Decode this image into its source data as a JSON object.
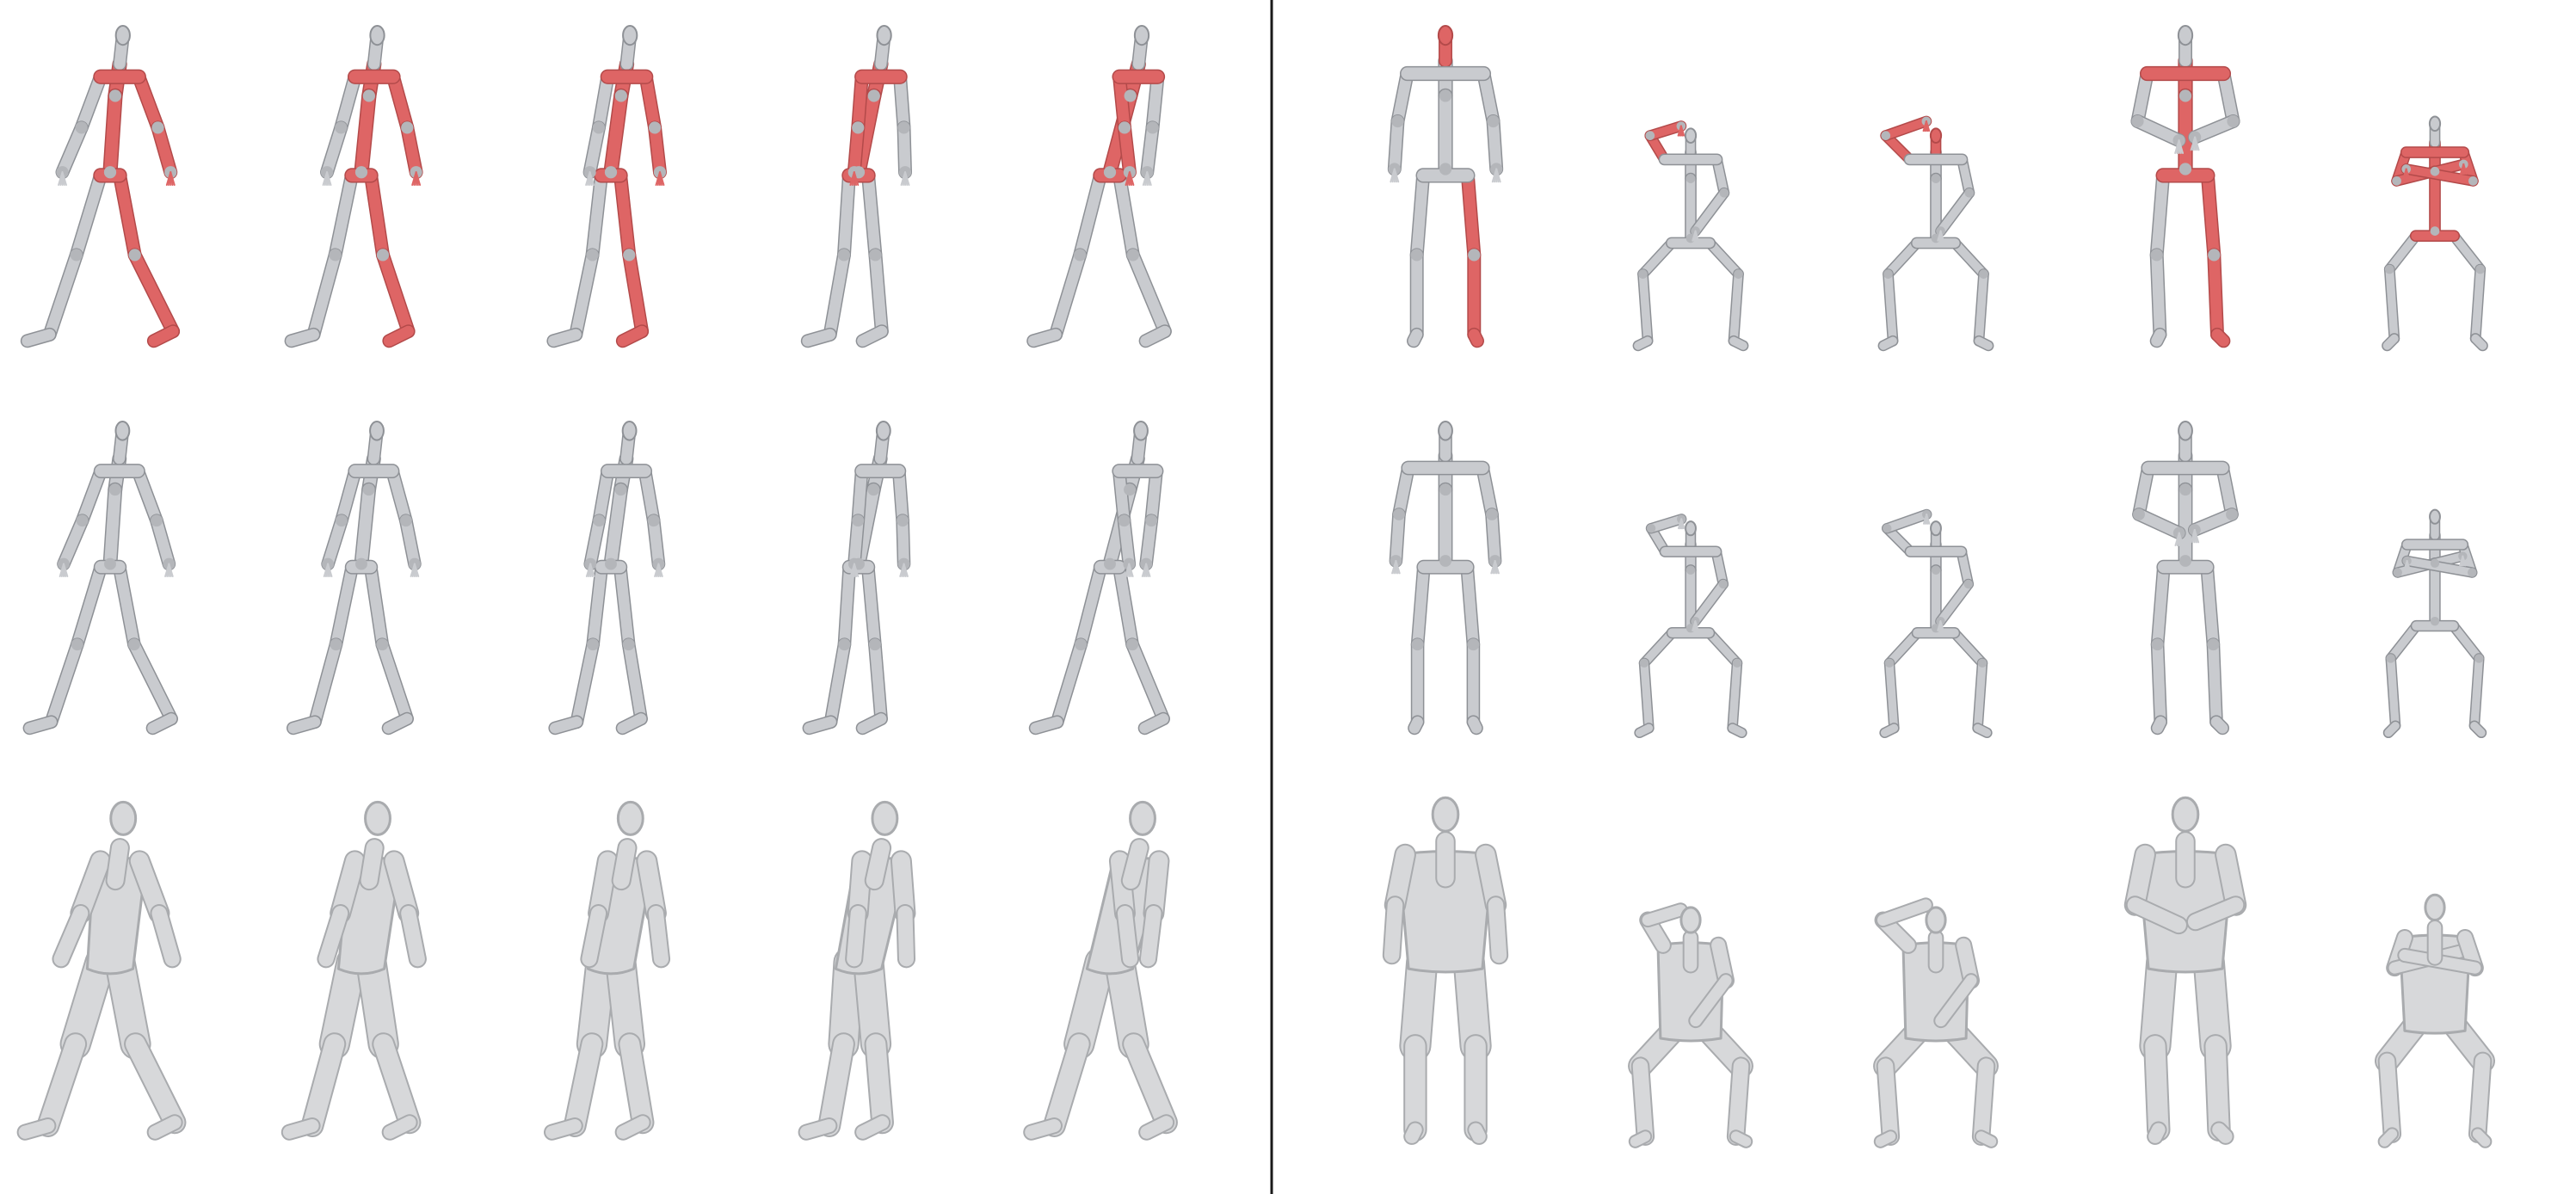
{
  "colors": {
    "background": "#ffffff",
    "divider": "#1a1a1a",
    "bone": "#c9cbcf",
    "bone_dark": "#8e9196",
    "joint": "#b4b6ba",
    "highlight": "#de6565",
    "highlight_dark": "#b34a4a",
    "mesh": "#d7d8da",
    "mesh_shade": "#a9abae"
  },
  "panels": [
    {
      "name": "walking-sequence",
      "rows": [
        "skeleton-highlighted",
        "skeleton-plain",
        "body-mesh"
      ],
      "frames": [
        {
          "pose": "walk",
          "lean": 0.02,
          "stride": 0.55,
          "arm_swing": 0.5,
          "highlight": [
            "torso",
            "right-arm",
            "right-leg"
          ]
        },
        {
          "pose": "walk",
          "lean": 0.03,
          "stride": 0.35,
          "arm_swing": 0.3,
          "highlight": [
            "torso",
            "right-arm",
            "right-leg"
          ]
        },
        {
          "pose": "walk",
          "lean": 0.04,
          "stride": 0.15,
          "arm_swing": 0.1,
          "highlight": [
            "torso",
            "right-arm",
            "right-leg"
          ]
        },
        {
          "pose": "walk",
          "lean": 0.06,
          "stride": 0.05,
          "arm_swing": -0.1,
          "highlight": [
            "torso",
            "left-arm"
          ]
        },
        {
          "pose": "walk",
          "lean": 0.08,
          "stride": 0.45,
          "arm_swing": -0.45,
          "highlight": [
            "torso",
            "left-arm"
          ]
        }
      ]
    },
    {
      "name": "pose-variety",
      "rows": [
        "skeleton-highlighted",
        "skeleton-plain",
        "body-mesh"
      ],
      "frames": [
        {
          "pose": "stand",
          "highlight": [
            "head",
            "right-leg"
          ]
        },
        {
          "pose": "squat-hand-head",
          "highlight": [
            "left-arm"
          ]
        },
        {
          "pose": "squat-hand-head-wide",
          "highlight": [
            "left-arm",
            "head"
          ]
        },
        {
          "pose": "stand-hands-front",
          "highlight": [
            "torso",
            "right-leg"
          ]
        },
        {
          "pose": "squat-arms-crossed",
          "highlight": [
            "left-arm",
            "right-arm",
            "torso"
          ]
        }
      ]
    }
  ]
}
